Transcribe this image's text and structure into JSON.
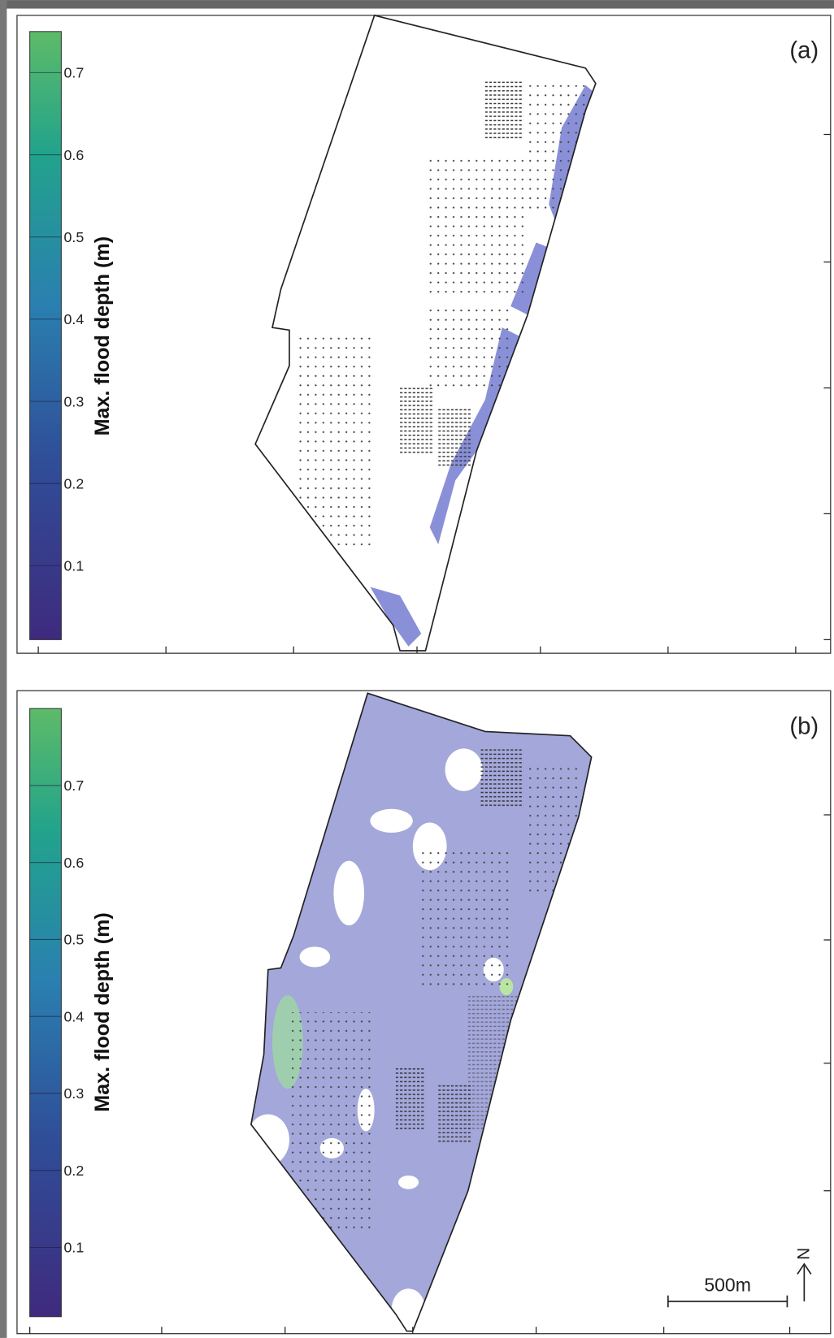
{
  "panels": [
    {
      "label": "(a)",
      "colorbar": {
        "title": "Max. flood depth (m)",
        "range": [
          0.01,
          0.75
        ],
        "ticks": [
          0.1,
          0.2,
          0.3,
          0.4,
          0.5,
          0.6,
          0.7
        ]
      }
    },
    {
      "label": "(b)",
      "colorbar": {
        "title": "Max. flood depth (m)",
        "range": [
          0.01,
          0.8
        ],
        "ticks": [
          0.1,
          0.2,
          0.3,
          0.4,
          0.5,
          0.6,
          0.7
        ]
      }
    }
  ],
  "scale_bar": "500m",
  "north": "N"
}
